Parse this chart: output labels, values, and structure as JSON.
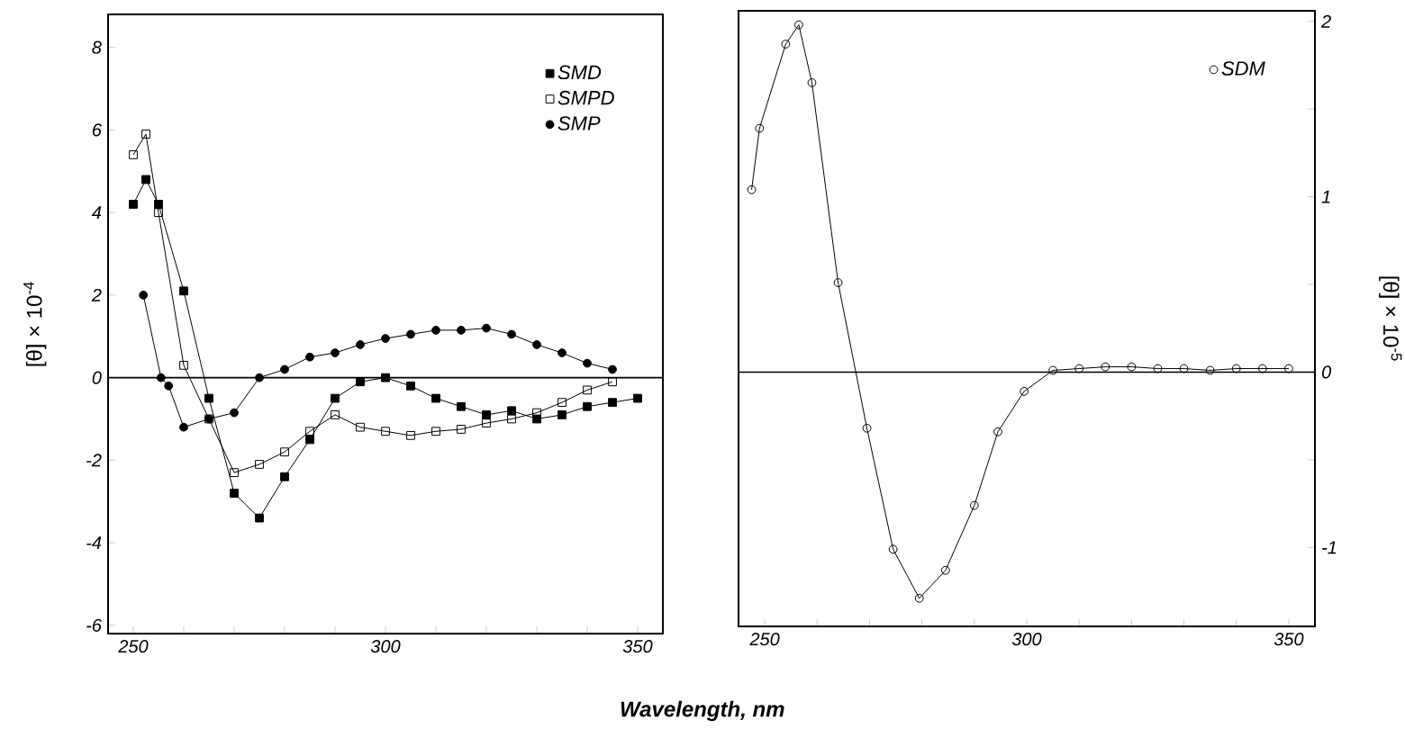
{
  "chart_data": [
    {
      "type": "line",
      "xlabel": "Wavelength, nm",
      "ylabel": "[θ] × 10$^{-4}$",
      "xlim": [
        245,
        355
      ],
      "ylim": [
        -6.2,
        8.8
      ],
      "xticks": [
        250,
        {
          "value": 260,
          "label": null
        },
        {
          "value": 270,
          "label": null
        },
        {
          "value": 280,
          "label": null
        },
        {
          "value": 290,
          "label": null
        },
        300,
        {
          "value": 310,
          "label": null
        },
        {
          "value": 320,
          "label": null
        },
        {
          "value": 330,
          "label": null
        },
        {
          "value": 340,
          "label": null
        },
        350
      ],
      "yticks": [
        -6,
        -4,
        -2,
        0,
        2,
        4,
        6,
        8
      ],
      "legend": "top right",
      "line_style": "solid",
      "ref_lines": [
        {
          "axis": "y",
          "value": 0
        }
      ],
      "series": [
        {
          "name": "SMD",
          "color": "#000000",
          "marker": "square",
          "x": [
            250,
            252.5,
            255,
            260,
            265,
            270,
            275,
            280,
            285,
            290,
            295,
            300,
            305,
            310,
            315,
            320,
            325,
            330,
            335,
            340,
            345,
            350
          ],
          "values": [
            4.2,
            4.8,
            4.2,
            2.1,
            -0.5,
            -2.8,
            -3.4,
            -2.4,
            -1.5,
            -0.5,
            -0.1,
            0.0,
            -0.2,
            -0.5,
            -0.7,
            -0.9,
            -0.8,
            -1.0,
            -0.9,
            -0.7,
            -0.6,
            -0.5
          ]
        },
        {
          "name": "SMPD",
          "color": "#000000",
          "marker": "square",
          "x": [
            250,
            252.5,
            255,
            260,
            265,
            270,
            275,
            280,
            285,
            290,
            295,
            300,
            305,
            310,
            315,
            320,
            325,
            330,
            335,
            340,
            345
          ],
          "values": [
            5.4,
            5.9,
            4.0,
            0.3,
            -1.0,
            -2.3,
            -2.1,
            -1.8,
            -1.3,
            -0.9,
            -1.2,
            -1.3,
            -1.4,
            -1.3,
            -1.25,
            -1.1,
            -1.0,
            -0.85,
            -0.6,
            -0.3,
            -0.1
          ]
        },
        {
          "name": "SMP",
          "color": "#000000",
          "marker": "circle",
          "x": [
            252,
            255.5,
            257,
            260,
            265,
            270,
            275,
            280,
            285,
            290,
            295,
            300,
            305,
            310,
            315,
            320,
            325,
            330,
            335,
            340,
            345
          ],
          "values": [
            2.0,
            0.0,
            -0.2,
            -1.2,
            -1.0,
            -0.85,
            0.0,
            0.2,
            0.5,
            0.6,
            0.8,
            0.95,
            1.05,
            1.15,
            1.15,
            1.2,
            1.05,
            0.8,
            0.6,
            0.35,
            0.2
          ]
        }
      ]
    },
    {
      "type": "line",
      "y2label": "[θ] × 10$^{-5}$",
      "xlim": [
        245,
        355
      ],
      "y2lim": [
        -1.45,
        2.06
      ],
      "xticks": [
        250,
        {
          "value": 260,
          "label": null
        },
        {
          "value": 270,
          "label": null
        },
        {
          "value": 280,
          "label": null
        },
        {
          "value": 290,
          "label": null
        },
        300,
        {
          "value": 310,
          "label": null
        },
        {
          "value": 320,
          "label": null
        },
        {
          "value": 330,
          "label": null
        },
        {
          "value": 340,
          "label": null
        },
        350
      ],
      "y2ticks": [
        -1,
        {
          "value": -0.5,
          "label": null
        },
        0,
        {
          "value": 0.5,
          "label": null
        },
        1,
        {
          "value": 1.5,
          "label": null
        },
        2
      ],
      "legend": "top right",
      "line_style": "solid",
      "ref_lines": [
        {
          "axis": "y2",
          "value": 0
        }
      ],
      "series": [
        {
          "name": "SDM",
          "color": "#000000",
          "marker": "circle",
          "axis": "y2",
          "x": [
            247.5,
            249,
            254,
            256.5,
            259,
            264,
            269.5,
            274.5,
            279.5,
            284.5,
            290,
            294.5,
            299.5,
            305,
            310,
            315,
            320,
            325,
            330,
            335,
            340,
            345,
            350
          ],
          "values": [
            1.04,
            1.39,
            1.87,
            1.98,
            1.65,
            0.51,
            -0.32,
            -1.01,
            -1.29,
            -1.13,
            -0.76,
            -0.34,
            -0.11,
            0.01,
            0.02,
            0.03,
            0.03,
            0.02,
            0.02,
            0.01,
            0.02,
            0.02,
            0.02
          ]
        }
      ]
    }
  ]
}
